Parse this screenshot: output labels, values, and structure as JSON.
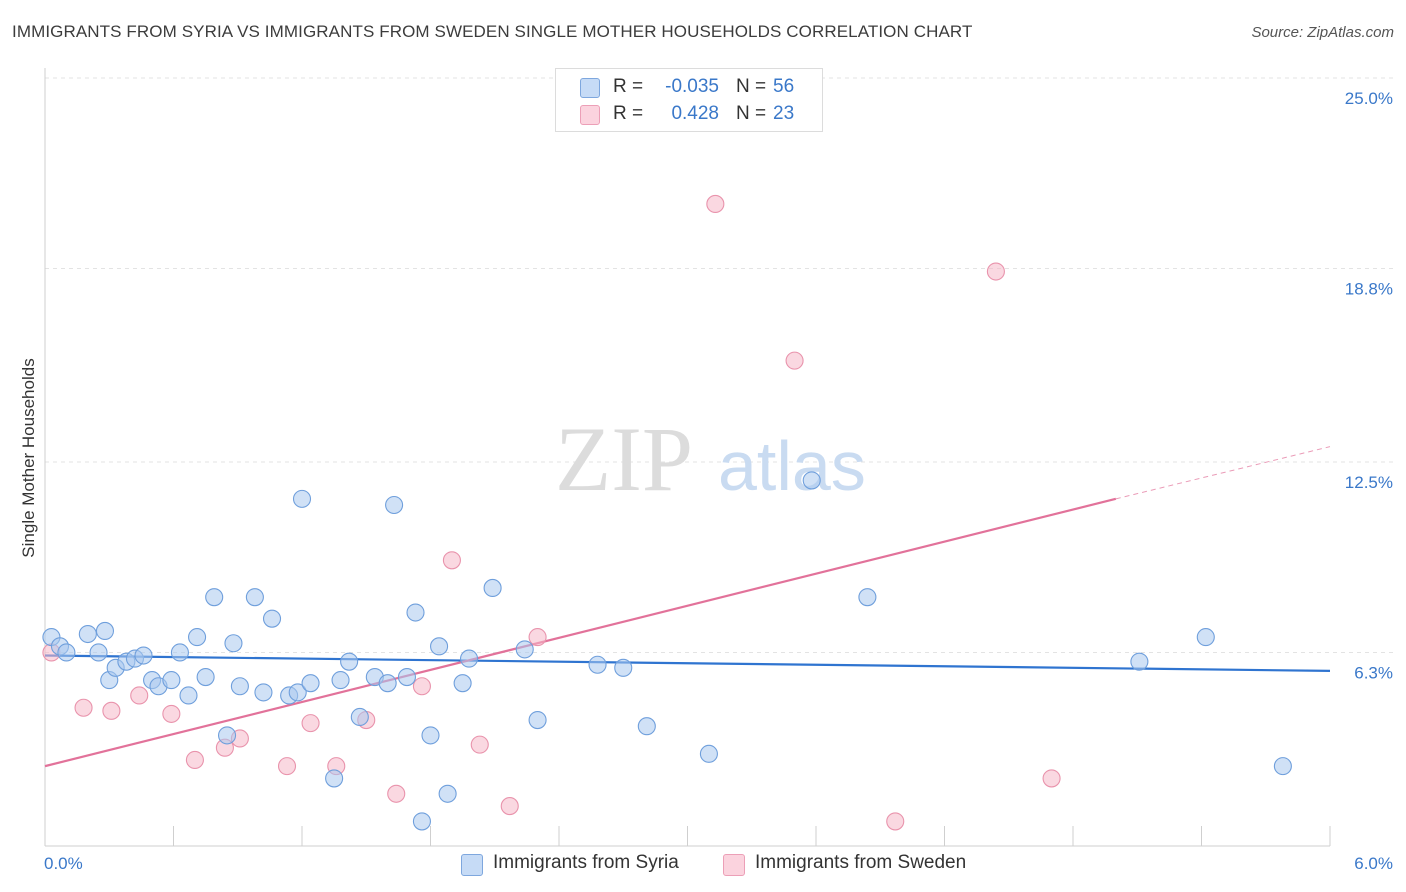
{
  "title": "IMMIGRANTS FROM SYRIA VS IMMIGRANTS FROM SWEDEN SINGLE MOTHER HOUSEHOLDS CORRELATION CHART",
  "source": "Source: ZipAtlas.com",
  "watermark": {
    "zip": "ZIP",
    "atlas": "atlas"
  },
  "legend": {
    "rows": [
      {
        "r_label": "R =",
        "r_value": "-0.035",
        "n_label": "N =",
        "n_value": "56",
        "color": "#a9c8ef"
      },
      {
        "r_label": "R =",
        "r_value": "0.428",
        "n_label": "N =",
        "n_value": "23",
        "color": "#f6b8c8"
      }
    ]
  },
  "bottom_legend": {
    "syria": "Immigrants from Syria",
    "sweden": "Immigrants from Sweden"
  },
  "colors": {
    "syria_fill": "#a9c8ef",
    "syria_stroke": "#6f9fdc",
    "syria_line": "#2f74d0",
    "sweden_fill": "#f6b8c8",
    "sweden_stroke": "#e993ac",
    "sweden_line": "#e2729a",
    "tick_text": "#3a78c9"
  },
  "chart_data": {
    "type": "scatter",
    "ylabel": "Single Mother Households",
    "xlim": [
      0.0,
      6.0
    ],
    "ylim": [
      0.0,
      25.0
    ],
    "x_tick_labels": [
      "0.0%",
      "6.0%"
    ],
    "y_ticks": [
      6.3,
      12.5,
      18.8,
      25.0
    ],
    "y_tick_labels": [
      "6.3%",
      "12.5%",
      "18.8%",
      "25.0%"
    ],
    "grid": true,
    "series": [
      {
        "name": "Immigrants from Syria",
        "points": [
          [
            0.03,
            6.8
          ],
          [
            0.07,
            6.5
          ],
          [
            0.1,
            6.3
          ],
          [
            0.2,
            6.9
          ],
          [
            0.25,
            6.3
          ],
          [
            0.28,
            7.0
          ],
          [
            0.3,
            5.4
          ],
          [
            0.33,
            5.8
          ],
          [
            0.38,
            6.0
          ],
          [
            0.42,
            6.1
          ],
          [
            0.46,
            6.2
          ],
          [
            0.5,
            5.4
          ],
          [
            0.53,
            5.2
          ],
          [
            0.59,
            5.4
          ],
          [
            0.63,
            6.3
          ],
          [
            0.67,
            4.9
          ],
          [
            0.71,
            6.8
          ],
          [
            0.75,
            5.5
          ],
          [
            0.79,
            8.1
          ],
          [
            0.85,
            3.6
          ],
          [
            0.88,
            6.6
          ],
          [
            0.91,
            5.2
          ],
          [
            0.98,
            8.1
          ],
          [
            1.02,
            5.0
          ],
          [
            1.06,
            7.4
          ],
          [
            1.14,
            4.9
          ],
          [
            1.18,
            5.0
          ],
          [
            1.2,
            11.3
          ],
          [
            1.24,
            5.3
          ],
          [
            1.35,
            2.2
          ],
          [
            1.38,
            5.4
          ],
          [
            1.42,
            6.0
          ],
          [
            1.47,
            4.2
          ],
          [
            1.54,
            5.5
          ],
          [
            1.6,
            5.3
          ],
          [
            1.63,
            11.1
          ],
          [
            1.69,
            5.5
          ],
          [
            1.73,
            7.6
          ],
          [
            1.76,
            0.8
          ],
          [
            1.8,
            3.6
          ],
          [
            1.84,
            6.5
          ],
          [
            1.88,
            1.7
          ],
          [
            1.95,
            5.3
          ],
          [
            1.98,
            6.1
          ],
          [
            2.09,
            8.4
          ],
          [
            2.24,
            6.4
          ],
          [
            2.3,
            4.1
          ],
          [
            2.58,
            5.9
          ],
          [
            2.7,
            5.8
          ],
          [
            2.81,
            3.9
          ],
          [
            3.1,
            3.0
          ],
          [
            3.58,
            11.9
          ],
          [
            3.84,
            8.1
          ],
          [
            5.11,
            6.0
          ],
          [
            5.42,
            6.8
          ],
          [
            5.78,
            2.6
          ]
        ],
        "trend": {
          "x0": 0.0,
          "y0": 6.2,
          "x1": 6.0,
          "y1": 5.7
        }
      },
      {
        "name": "Immigrants from Sweden",
        "points": [
          [
            0.03,
            6.3
          ],
          [
            0.18,
            4.5
          ],
          [
            0.31,
            4.4
          ],
          [
            0.44,
            4.9
          ],
          [
            0.59,
            4.3
          ],
          [
            0.7,
            2.8
          ],
          [
            0.84,
            3.2
          ],
          [
            0.91,
            3.5
          ],
          [
            1.13,
            2.6
          ],
          [
            1.24,
            4.0
          ],
          [
            1.36,
            2.6
          ],
          [
            1.5,
            4.1
          ],
          [
            1.64,
            1.7
          ],
          [
            1.76,
            5.2
          ],
          [
            1.9,
            9.3
          ],
          [
            2.03,
            3.3
          ],
          [
            2.17,
            1.3
          ],
          [
            2.3,
            6.8
          ],
          [
            3.13,
            20.9
          ],
          [
            3.5,
            15.8
          ],
          [
            3.97,
            0.8
          ],
          [
            4.44,
            18.7
          ],
          [
            4.7,
            2.2
          ]
        ],
        "trend": {
          "x0": 0.0,
          "y0": 2.6,
          "x1": 5.0,
          "y1": 11.3,
          "x1_dashed": 6.0,
          "y1_dashed": 13.0
        }
      }
    ]
  }
}
